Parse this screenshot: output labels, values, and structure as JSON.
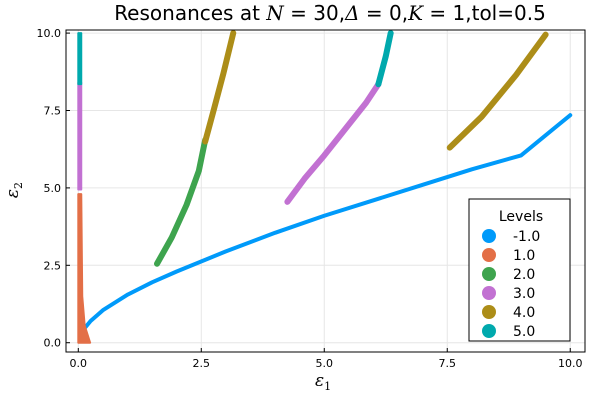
{
  "chart_data": {
    "type": "scatter",
    "title_parts": {
      "prefix": "Resonances at ",
      "n_sym": "N",
      "n_val": " = 30,",
      "d_sym": "Δ",
      "d_val": " = 0,",
      "k_sym": "K",
      "k_val": " = 1,tol=0.5"
    },
    "xlabel": {
      "sym": "ε",
      "sub": "1"
    },
    "ylabel": {
      "sym": "ε",
      "sub": "2"
    },
    "xlim": [
      -0.25,
      10.3
    ],
    "ylim": [
      -0.3,
      10.1
    ],
    "xticks": [
      0.0,
      2.5,
      5.0,
      7.5,
      10.0
    ],
    "xticklabels": [
      "0.0",
      "2.5",
      "5.0",
      "7.5",
      "10.0"
    ],
    "yticks": [
      0.0,
      2.5,
      5.0,
      7.5,
      10.0
    ],
    "yticklabels": [
      "0.0",
      "2.5",
      "5.0",
      "7.5",
      "10.0"
    ],
    "grid": true,
    "legend": {
      "title": "Levels",
      "position": "bottom-right"
    },
    "series": [
      {
        "name": "-1.0",
        "color": "#009AFA",
        "strips": [
          {
            "kind": "line",
            "points": [
              [
                0.12,
                0.45
              ],
              [
                0.25,
                0.7
              ],
              [
                0.5,
                1.05
              ],
              [
                1.0,
                1.55
              ],
              [
                1.5,
                1.95
              ],
              [
                2.0,
                2.3
              ],
              [
                3.0,
                2.95
              ],
              [
                4.0,
                3.55
              ],
              [
                5.0,
                4.1
              ],
              [
                6.0,
                4.6
              ],
              [
                7.0,
                5.1
              ],
              [
                8.0,
                5.6
              ],
              [
                9.0,
                6.05
              ],
              [
                10.0,
                7.35
              ]
            ]
          }
        ]
      },
      {
        "name": "1.0",
        "color": "#E36F47",
        "strips": [
          {
            "kind": "polygon",
            "points": [
              [
                0.0,
                4.8
              ],
              [
                0.06,
                4.8
              ],
              [
                0.08,
                1.5
              ],
              [
                0.13,
                0.55
              ],
              [
                0.24,
                0.0
              ],
              [
                0.0,
                0.0
              ]
            ]
          }
        ]
      },
      {
        "name": "2.0",
        "color": "#3EA44E",
        "strips": [
          {
            "kind": "band",
            "center": [
              [
                1.6,
                2.55
              ],
              [
                1.9,
                3.4
              ],
              [
                2.2,
                4.45
              ],
              [
                2.45,
                5.55
              ],
              [
                2.58,
                6.55
              ]
            ],
            "width": 6
          }
        ]
      },
      {
        "name": "3.0",
        "color": "#C271D2",
        "strips": [
          {
            "kind": "band",
            "center": [
              [
                4.25,
                4.55
              ],
              [
                4.6,
                5.3
              ],
              [
                5.0,
                6.05
              ],
              [
                5.4,
                6.85
              ],
              [
                5.85,
                7.75
              ],
              [
                6.1,
                8.35
              ]
            ],
            "width": 6
          },
          {
            "kind": "polygon",
            "points": [
              [
                0.0,
                8.4
              ],
              [
                0.06,
                8.4
              ],
              [
                0.06,
                4.95
              ],
              [
                0.0,
                4.95
              ]
            ]
          }
        ]
      },
      {
        "name": "4.0",
        "color": "#AC8D18",
        "strips": [
          {
            "kind": "band",
            "center": [
              [
                2.58,
                6.5
              ],
              [
                2.75,
                7.5
              ],
              [
                2.95,
                8.7
              ],
              [
                3.15,
                10.0
              ]
            ],
            "width": 6
          },
          {
            "kind": "band",
            "center": [
              [
                7.55,
                6.3
              ],
              [
                8.2,
                7.3
              ],
              [
                8.9,
                8.65
              ],
              [
                9.5,
                9.95
              ]
            ],
            "width": 6
          }
        ]
      },
      {
        "name": "5.0",
        "color": "#00A9AD",
        "strips": [
          {
            "kind": "band",
            "center": [
              [
                6.1,
                8.35
              ],
              [
                6.25,
                9.25
              ],
              [
                6.35,
                10.0
              ]
            ],
            "width": 6
          },
          {
            "kind": "polygon",
            "points": [
              [
                0.0,
                10.0
              ],
              [
                0.06,
                10.0
              ],
              [
                0.06,
                8.35
              ],
              [
                0.0,
                8.35
              ]
            ]
          }
        ]
      }
    ]
  }
}
